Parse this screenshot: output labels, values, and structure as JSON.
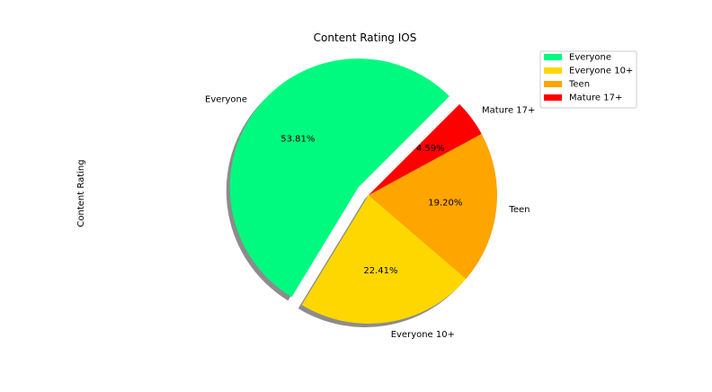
{
  "chart_data": {
    "type": "pie",
    "title": "Content Rating IOS",
    "ylabel": "Content Rating",
    "slices": [
      {
        "label": "Everyone",
        "value": 53.81,
        "pct_label": "53.81%",
        "color": "#00FA7F",
        "explode": true
      },
      {
        "label": "Everyone 10+",
        "value": 22.41,
        "pct_label": "22.41%",
        "color": "#FFD700",
        "explode": false
      },
      {
        "label": "Teen",
        "value": 19.2,
        "pct_label": "19.20%",
        "color": "#FFA500",
        "explode": false
      },
      {
        "label": "Mature 17+",
        "value": 4.59,
        "pct_label": "4.59%",
        "color": "#FF0000",
        "explode": false
      }
    ],
    "shadow": true,
    "legend": {
      "placement": "top-right",
      "entries": [
        "Everyone",
        "Everyone 10+",
        "Teen",
        "Mature 17+"
      ]
    }
  }
}
